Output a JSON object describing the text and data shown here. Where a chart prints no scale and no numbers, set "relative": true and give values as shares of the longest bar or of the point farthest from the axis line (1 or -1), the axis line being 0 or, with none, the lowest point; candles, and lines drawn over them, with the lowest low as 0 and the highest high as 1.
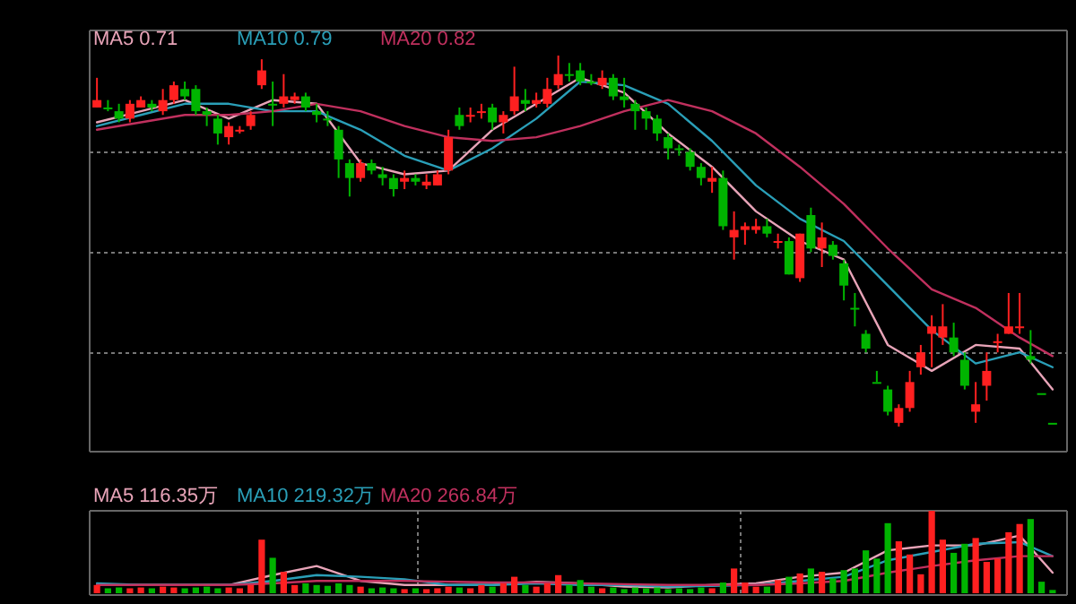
{
  "chart_data": [
    {
      "type": "candlestick",
      "relative": true,
      "grid": true,
      "legend": "top left",
      "categories": [
        null,
        null,
        null,
        null,
        null,
        null,
        null,
        null,
        null,
        null,
        null,
        null,
        null,
        null,
        null,
        null,
        null,
        null,
        null,
        null,
        null,
        null,
        null,
        null,
        null,
        null,
        null,
        null,
        null,
        null,
        null,
        null,
        null,
        null,
        null,
        null,
        null,
        null,
        null,
        null,
        null,
        null,
        null,
        null,
        null,
        null,
        null,
        null,
        null,
        null,
        null,
        null,
        null,
        null,
        null,
        null,
        null,
        null,
        null,
        null,
        null,
        null,
        null,
        null,
        null,
        null,
        null,
        null,
        null,
        null,
        null,
        null,
        null,
        null,
        null,
        null,
        null,
        null,
        null,
        null,
        null,
        null,
        null,
        null,
        null,
        null,
        null,
        null
      ],
      "ohlc": [
        [
          0.86,
          0.94,
          0.86,
          0.88
        ],
        [
          0.86,
          0.88,
          0.85,
          0.86
        ],
        [
          0.85,
          0.87,
          0.82,
          0.83
        ],
        [
          0.83,
          0.88,
          0.82,
          0.87
        ],
        [
          0.86,
          0.89,
          0.86,
          0.88
        ],
        [
          0.87,
          0.88,
          0.85,
          0.86
        ],
        [
          0.85,
          0.91,
          0.84,
          0.88
        ],
        [
          0.88,
          0.93,
          0.87,
          0.92
        ],
        [
          0.91,
          0.93,
          0.88,
          0.89
        ],
        [
          0.91,
          0.92,
          0.84,
          0.85
        ],
        [
          0.85,
          0.86,
          0.81,
          0.84
        ],
        [
          0.83,
          0.84,
          0.76,
          0.79
        ],
        [
          0.78,
          0.82,
          0.76,
          0.81
        ],
        [
          0.8,
          0.81,
          0.79,
          0.8
        ],
        [
          0.81,
          0.85,
          0.8,
          0.84
        ],
        [
          0.92,
          0.99,
          0.91,
          0.96
        ],
        [
          0.87,
          0.93,
          0.81,
          0.87
        ],
        [
          0.87,
          0.95,
          0.86,
          0.89
        ],
        [
          0.88,
          0.9,
          0.87,
          0.89
        ],
        [
          0.89,
          0.9,
          0.85,
          0.86
        ],
        [
          0.85,
          0.87,
          0.82,
          0.84
        ],
        [
          0.83,
          0.85,
          0.81,
          0.83
        ],
        [
          0.8,
          0.81,
          0.67,
          0.72
        ],
        [
          0.71,
          0.72,
          0.62,
          0.67
        ],
        [
          0.67,
          0.72,
          0.66,
          0.71
        ],
        [
          0.71,
          0.72,
          0.68,
          0.69
        ],
        [
          0.68,
          0.7,
          0.65,
          0.67
        ],
        [
          0.67,
          0.68,
          0.62,
          0.64
        ],
        [
          0.66,
          0.69,
          0.64,
          0.67
        ],
        [
          0.67,
          0.68,
          0.65,
          0.66
        ],
        [
          0.65,
          0.68,
          0.64,
          0.66
        ],
        [
          0.65,
          0.69,
          0.65,
          0.68
        ],
        [
          0.69,
          0.8,
          0.68,
          0.78
        ],
        [
          0.84,
          0.86,
          0.8,
          0.81
        ],
        [
          0.84,
          0.86,
          0.82,
          0.84
        ],
        [
          0.85,
          0.87,
          0.83,
          0.85
        ],
        [
          0.86,
          0.87,
          0.8,
          0.82
        ],
        [
          0.82,
          0.85,
          0.79,
          0.84
        ],
        [
          0.85,
          0.97,
          0.84,
          0.89
        ],
        [
          0.88,
          0.91,
          0.85,
          0.87
        ],
        [
          0.87,
          0.9,
          0.86,
          0.88
        ],
        [
          0.87,
          0.94,
          0.86,
          0.91
        ],
        [
          0.92,
          1.0,
          0.91,
          0.95
        ],
        [
          0.95,
          0.98,
          0.93,
          0.95
        ],
        [
          0.96,
          0.98,
          0.92,
          0.93
        ],
        [
          0.93,
          0.95,
          0.92,
          0.93
        ],
        [
          0.92,
          0.96,
          0.91,
          0.94
        ],
        [
          0.94,
          0.95,
          0.88,
          0.89
        ],
        [
          0.89,
          0.94,
          0.86,
          0.88
        ],
        [
          0.87,
          0.88,
          0.8,
          0.85
        ],
        [
          0.85,
          0.86,
          0.8,
          0.83
        ],
        [
          0.83,
          0.84,
          0.77,
          0.79
        ],
        [
          0.78,
          0.79,
          0.72,
          0.75
        ],
        [
          0.75,
          0.76,
          0.73,
          0.75
        ],
        [
          0.74,
          0.75,
          0.69,
          0.7
        ],
        [
          0.7,
          0.71,
          0.65,
          0.67
        ],
        [
          0.66,
          0.7,
          0.63,
          0.67
        ],
        [
          0.67,
          0.69,
          0.53,
          0.54
        ],
        [
          0.51,
          0.58,
          0.45,
          0.53
        ],
        [
          0.53,
          0.55,
          0.49,
          0.54
        ],
        [
          0.53,
          0.56,
          0.52,
          0.54
        ],
        [
          0.54,
          0.56,
          0.51,
          0.52
        ],
        [
          0.5,
          0.52,
          0.48,
          0.5
        ],
        [
          0.5,
          0.51,
          0.41,
          0.41
        ],
        [
          0.4,
          0.52,
          0.39,
          0.52
        ],
        [
          0.57,
          0.59,
          0.47,
          0.48
        ],
        [
          0.48,
          0.55,
          0.43,
          0.51
        ],
        [
          0.49,
          0.5,
          0.45,
          0.46
        ],
        [
          0.44,
          0.45,
          0.34,
          0.38
        ],
        [
          0.32,
          0.36,
          0.27,
          0.32
        ],
        [
          0.25,
          0.26,
          0.2,
          0.21
        ],
        [
          0.12,
          0.15,
          0.12,
          0.12
        ],
        [
          0.1,
          0.11,
          0.03,
          0.04
        ],
        [
          0.01,
          0.06,
          0.0,
          0.05
        ],
        [
          0.05,
          0.15,
          0.04,
          0.12
        ],
        [
          0.16,
          0.22,
          0.14,
          0.2
        ],
        [
          0.25,
          0.3,
          0.16,
          0.27
        ],
        [
          0.24,
          0.33,
          0.22,
          0.27
        ],
        [
          0.24,
          0.28,
          0.19,
          0.2
        ],
        [
          0.18,
          0.2,
          0.1,
          0.11
        ],
        [
          0.04,
          0.12,
          0.01,
          0.06
        ],
        [
          0.11,
          0.2,
          0.07,
          0.15
        ],
        [
          0.23,
          0.25,
          0.2,
          0.23
        ],
        [
          0.25,
          0.36,
          0.25,
          0.27
        ],
        [
          0.27,
          0.36,
          0.25,
          0.27
        ],
        [
          0.19,
          0.26,
          0.17,
          0.18
        ],
        [
          0.09,
          0.09,
          0.09,
          0.09
        ],
        [
          0.01,
          0.01,
          0.01,
          0.01
        ]
      ],
      "colors": [
        "#ff2020",
        "#00b400",
        "#00b400",
        "#ff2020",
        "#ff2020",
        "#00b400",
        "#ff2020",
        "#ff2020",
        "#00b400",
        "#00b400",
        "#00b400",
        "#00b400",
        "#ff2020",
        "#ff2020",
        "#ff2020",
        "#ff2020",
        "#00b400",
        "#ff2020",
        "#ff2020",
        "#00b400",
        "#00b400",
        "#00b400",
        "#00b400",
        "#00b400",
        "#ff2020",
        "#00b400",
        "#00b400",
        "#00b400",
        "#ff2020",
        "#00b400",
        "#ff2020",
        "#ff2020",
        "#ff2020",
        "#00b400",
        "#ff2020",
        "#ff2020",
        "#00b400",
        "#ff2020",
        "#ff2020",
        "#00b400",
        "#ff2020",
        "#ff2020",
        "#ff2020",
        "#00b400",
        "#00b400",
        "#00b400",
        "#ff2020",
        "#00b400",
        "#00b400",
        "#00b400",
        "#00b400",
        "#00b400",
        "#00b400",
        "#00b400",
        "#00b400",
        "#00b400",
        "#ff2020",
        "#00b400",
        "#ff2020",
        "#ff2020",
        "#ff2020",
        "#00b400",
        "#ff2020",
        "#00b400",
        "#ff2020",
        "#00b400",
        "#ff2020",
        "#00b400",
        "#00b400",
        "#00b400",
        "#00b400",
        "#00b400",
        "#00b400",
        "#ff2020",
        "#ff2020",
        "#ff2020",
        "#ff2020",
        "#ff2020",
        "#00b400",
        "#00b400",
        "#ff2020",
        "#ff2020",
        "#ff2020",
        "#ff2020",
        "#ff2020",
        "#00b400",
        "#00b400",
        "#00b400"
      ],
      "series": [
        {
          "type": "line",
          "name": "MA5 0.71",
          "color": "#e8a4b8",
          "values": [
            0.82,
            null,
            null,
            null,
            0.85,
            null,
            null,
            null,
            0.88,
            null,
            null,
            null,
            0.83,
            null,
            null,
            null,
            0.88,
            null,
            null,
            null,
            0.87,
            null,
            null,
            null,
            0.71,
            null,
            null,
            null,
            0.68,
            null,
            null,
            null,
            0.69,
            null,
            null,
            null,
            0.8,
            null,
            null,
            null,
            0.87,
            null,
            null,
            null,
            0.94,
            null,
            null,
            null,
            0.9,
            null,
            null,
            null,
            0.79,
            null,
            null,
            null,
            0.7,
            null,
            null,
            null,
            0.58,
            null,
            null,
            null,
            0.5,
            null,
            null,
            null,
            0.45,
            null,
            null,
            null,
            0.22,
            null,
            null,
            null,
            0.15,
            null,
            null,
            null,
            0.22,
            null,
            null,
            null,
            0.21,
            null,
            null,
            0.1
          ]
        },
        {
          "type": "line",
          "name": "MA10 0.79",
          "color": "#2a9fb8",
          "values": [
            0.81,
            null,
            null,
            null,
            0.84,
            null,
            null,
            null,
            0.87,
            null,
            null,
            null,
            0.87,
            null,
            null,
            null,
            0.85,
            null,
            null,
            null,
            0.85,
            null,
            null,
            null,
            0.8,
            null,
            null,
            null,
            0.73,
            null,
            null,
            null,
            0.69,
            null,
            null,
            null,
            0.75,
            null,
            null,
            null,
            0.83,
            null,
            null,
            null,
            0.93,
            null,
            null,
            null,
            0.92,
            null,
            null,
            null,
            0.87,
            null,
            null,
            null,
            0.77,
            null,
            null,
            null,
            0.65,
            null,
            null,
            null,
            0.56,
            null,
            null,
            null,
            0.5,
            null,
            null,
            null,
            0.38,
            null,
            null,
            null,
            0.26,
            null,
            null,
            null,
            0.17,
            null,
            null,
            null,
            0.2,
            null,
            null,
            0.16
          ]
        },
        {
          "type": "line",
          "name": "MA20 0.82",
          "color": "#c0305e",
          "values": [
            0.8,
            null,
            null,
            null,
            0.82,
            null,
            null,
            null,
            0.84,
            null,
            null,
            null,
            0.84,
            null,
            null,
            null,
            0.85,
            null,
            null,
            null,
            0.87,
            null,
            null,
            null,
            0.85,
            null,
            null,
            null,
            0.81,
            null,
            null,
            null,
            0.78,
            null,
            null,
            null,
            0.77,
            null,
            null,
            null,
            0.78,
            null,
            null,
            null,
            0.81,
            null,
            null,
            null,
            0.85,
            null,
            null,
            null,
            0.88,
            null,
            null,
            null,
            0.85,
            null,
            null,
            null,
            0.79,
            null,
            null,
            null,
            0.7,
            null,
            null,
            null,
            0.6,
            null,
            null,
            null,
            0.48,
            null,
            null,
            null,
            0.37,
            null,
            null,
            null,
            0.32,
            null,
            null,
            null,
            0.24,
            null,
            null,
            0.19
          ]
        }
      ]
    },
    {
      "type": "bar",
      "relative": true,
      "grid": true,
      "legend": "top left",
      "categories": [
        null,
        null,
        null,
        null,
        null,
        null,
        null,
        null,
        null,
        null,
        null,
        null,
        null,
        null,
        null,
        null,
        null,
        null,
        null,
        null,
        null,
        null,
        null,
        null,
        null,
        null,
        null,
        null,
        null,
        null,
        null,
        null,
        null,
        null,
        null,
        null,
        null,
        null,
        null,
        null,
        null,
        null,
        null,
        null,
        null,
        null,
        null,
        null,
        null,
        null,
        null,
        null,
        null,
        null,
        null,
        null,
        null,
        null,
        null,
        null,
        null,
        null,
        null,
        null,
        null,
        null,
        null,
        null,
        null,
        null,
        null,
        null,
        null,
        null,
        null,
        null,
        null,
        null,
        null,
        null,
        null,
        null,
        null,
        null,
        null,
        null,
        null,
        null
      ],
      "values": [
        0.1,
        0.06,
        0.07,
        0.06,
        0.07,
        0.06,
        0.08,
        0.07,
        0.06,
        0.07,
        0.08,
        0.06,
        0.07,
        0.06,
        0.1,
        0.65,
        0.43,
        0.26,
        0.1,
        0.12,
        0.1,
        0.09,
        0.12,
        0.1,
        0.08,
        0.06,
        0.07,
        0.06,
        0.05,
        0.06,
        0.05,
        0.06,
        0.08,
        0.07,
        0.06,
        0.1,
        0.08,
        0.12,
        0.2,
        0.1,
        0.08,
        0.12,
        0.22,
        0.1,
        0.16,
        0.08,
        0.06,
        0.07,
        0.05,
        0.07,
        0.06,
        0.07,
        0.05,
        0.06,
        0.05,
        0.07,
        0.06,
        0.13,
        0.3,
        0.13,
        0.08,
        0.08,
        0.16,
        0.2,
        0.24,
        0.3,
        0.26,
        0.18,
        0.28,
        0.3,
        0.52,
        0.42,
        0.85,
        0.63,
        0.47,
        0.23,
        1.0,
        0.65,
        0.49,
        0.6,
        0.67,
        0.38,
        0.42,
        0.74,
        0.84,
        0.9,
        0.14,
        0.04
      ],
      "colors": [
        "#ff2020",
        "#00b400",
        "#00b400",
        "#ff2020",
        "#ff2020",
        "#00b400",
        "#ff2020",
        "#ff2020",
        "#00b400",
        "#00b400",
        "#00b400",
        "#00b400",
        "#ff2020",
        "#ff2020",
        "#ff2020",
        "#ff2020",
        "#00b400",
        "#ff2020",
        "#ff2020",
        "#00b400",
        "#00b400",
        "#00b400",
        "#00b400",
        "#00b400",
        "#ff2020",
        "#00b400",
        "#00b400",
        "#00b400",
        "#ff2020",
        "#00b400",
        "#ff2020",
        "#ff2020",
        "#ff2020",
        "#00b400",
        "#ff2020",
        "#ff2020",
        "#00b400",
        "#ff2020",
        "#ff2020",
        "#00b400",
        "#ff2020",
        "#ff2020",
        "#ff2020",
        "#00b400",
        "#00b400",
        "#00b400",
        "#ff2020",
        "#00b400",
        "#00b400",
        "#00b400",
        "#00b400",
        "#00b400",
        "#00b400",
        "#00b400",
        "#00b400",
        "#00b400",
        "#ff2020",
        "#00b400",
        "#ff2020",
        "#ff2020",
        "#ff2020",
        "#00b400",
        "#ff2020",
        "#00b400",
        "#ff2020",
        "#00b400",
        "#ff2020",
        "#00b400",
        "#00b400",
        "#00b400",
        "#00b400",
        "#00b400",
        "#00b400",
        "#ff2020",
        "#ff2020",
        "#ff2020",
        "#ff2020",
        "#ff2020",
        "#00b400",
        "#00b400",
        "#ff2020",
        "#ff2020",
        "#ff2020",
        "#ff2020",
        "#ff2020",
        "#00b400",
        "#00b400",
        "#00b400"
      ],
      "series": [
        {
          "type": "line",
          "name": "MA5 116.35万",
          "color": "#e8a4b8",
          "values": [
            0.1,
            null,
            null,
            null,
            0.1,
            null,
            null,
            null,
            0.1,
            null,
            null,
            null,
            0.1,
            null,
            null,
            null,
            0.22,
            null,
            null,
            null,
            0.33,
            null,
            null,
            null,
            0.15,
            null,
            null,
            null,
            0.1,
            null,
            null,
            null,
            0.1,
            null,
            null,
            null,
            0.1,
            null,
            null,
            null,
            0.14,
            null,
            null,
            null,
            0.12,
            null,
            null,
            null,
            0.08,
            null,
            null,
            null,
            0.07,
            null,
            null,
            null,
            0.1,
            null,
            null,
            null,
            0.12,
            null,
            null,
            null,
            0.2,
            null,
            null,
            null,
            0.25,
            null,
            null,
            null,
            0.52,
            null,
            null,
            null,
            0.58,
            null,
            null,
            null,
            0.58,
            null,
            null,
            null,
            0.7,
            null,
            null,
            0.25
          ]
        },
        {
          "type": "line",
          "name": "MA10 219.32万",
          "color": "#2a9fb8",
          "values": [
            0.12,
            null,
            null,
            null,
            0.1,
            null,
            null,
            null,
            0.1,
            null,
            null,
            null,
            0.1,
            null,
            null,
            null,
            0.15,
            null,
            null,
            null,
            0.22,
            null,
            null,
            null,
            0.2,
            null,
            null,
            null,
            0.17,
            null,
            null,
            null,
            0.1,
            null,
            null,
            null,
            0.1,
            null,
            null,
            null,
            0.12,
            null,
            null,
            null,
            0.1,
            null,
            null,
            null,
            0.1,
            null,
            null,
            null,
            0.08,
            null,
            null,
            null,
            0.09,
            null,
            null,
            null,
            0.1,
            null,
            null,
            null,
            0.15,
            null,
            null,
            null,
            0.2,
            null,
            null,
            null,
            0.4,
            null,
            null,
            null,
            0.5,
            null,
            null,
            null,
            0.6,
            null,
            null,
            null,
            0.62,
            null,
            null,
            0.45
          ]
        },
        {
          "type": "line",
          "name": "MA20 266.84万",
          "color": "#c0305e",
          "values": [
            0.1,
            null,
            null,
            null,
            0.1,
            null,
            null,
            null,
            0.1,
            null,
            null,
            null,
            0.1,
            null,
            null,
            null,
            0.12,
            null,
            null,
            null,
            0.15,
            null,
            null,
            null,
            0.15,
            null,
            null,
            null,
            0.15,
            null,
            null,
            null,
            0.14,
            null,
            null,
            null,
            0.13,
            null,
            null,
            null,
            0.13,
            null,
            null,
            null,
            0.12,
            null,
            null,
            null,
            0.11,
            null,
            null,
            null,
            0.1,
            null,
            null,
            null,
            0.1,
            null,
            null,
            null,
            0.1,
            null,
            null,
            null,
            0.12,
            null,
            null,
            null,
            0.15,
            null,
            null,
            null,
            0.25,
            null,
            null,
            null,
            0.33,
            null,
            null,
            null,
            0.4,
            null,
            null,
            null,
            0.45,
            null,
            null,
            0.45
          ]
        }
      ]
    }
  ]
}
